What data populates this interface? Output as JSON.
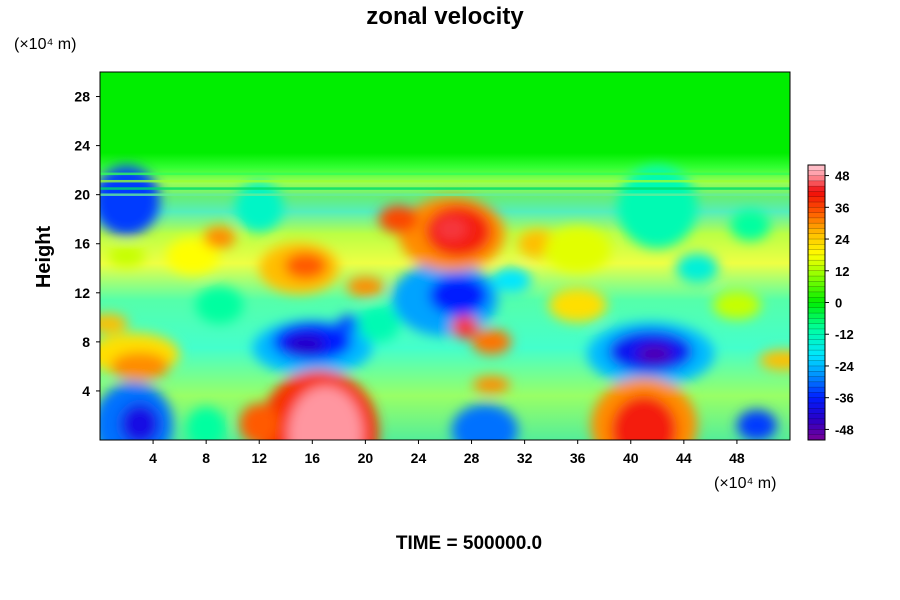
{
  "chart_data": {
    "type": "heatmap",
    "title": "zonal velocity",
    "subtitle": "TIME = 500000.0",
    "xlabel": "",
    "ylabel": "Height",
    "x_unit": "(×10⁴ m)",
    "y_unit": "(×10⁴ m)",
    "xlim": [
      0,
      52
    ],
    "ylim": [
      0,
      30
    ],
    "x_ticks": [
      4,
      8,
      12,
      16,
      20,
      24,
      28,
      32,
      36,
      40,
      44,
      48
    ],
    "y_ticks": [
      4,
      8,
      12,
      16,
      20,
      24,
      28
    ],
    "colorbar": {
      "ticks": [
        48,
        36,
        24,
        12,
        0,
        -12,
        -24,
        -36,
        -48
      ],
      "range": [
        -52,
        52
      ]
    },
    "z_features": [
      {
        "x": 16.5,
        "y": 0.6,
        "value": 48
      },
      {
        "x": 27.5,
        "y": 9.2,
        "value": 46
      },
      {
        "x": 26.5,
        "y": 16.8,
        "value": 42
      },
      {
        "x": 15,
        "y": 14,
        "value": 32
      },
      {
        "x": 2.5,
        "y": 7,
        "value": 28
      },
      {
        "x": 41.5,
        "y": 7,
        "value": -48
      },
      {
        "x": 16,
        "y": 7.5,
        "value": -42
      },
      {
        "x": 26,
        "y": 11.5,
        "value": -36
      },
      {
        "x": 2.5,
        "y": 1.3,
        "value": -38
      }
    ]
  },
  "colors": {
    "background": "#ffffff",
    "upper_field": "#00ee00"
  }
}
